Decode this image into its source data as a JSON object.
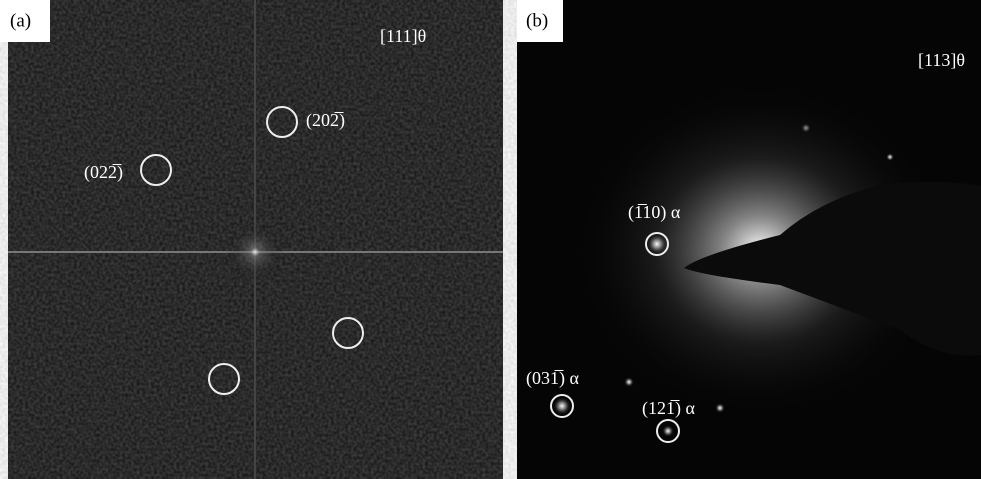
{
  "panels": [
    {
      "label": "(a)",
      "zone_axis": "[111]θ",
      "spots": [
        {
          "label": "(202̅)"
        },
        {
          "label": "(022̅)"
        }
      ]
    },
    {
      "label": "(b)",
      "zone_axis": "[113]θ",
      "spots": [
        {
          "label": "(1̅10) α"
        },
        {
          "label": "(031̅) α"
        },
        {
          "label": "(121̅) α"
        }
      ]
    }
  ]
}
